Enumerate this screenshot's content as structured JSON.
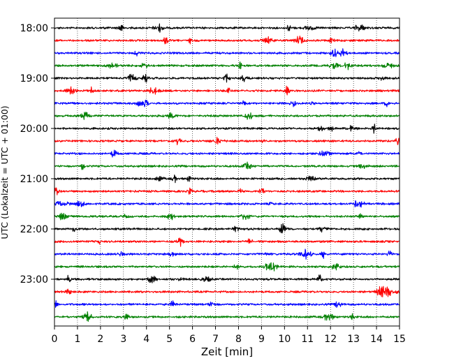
{
  "chart_data": {
    "type": "line",
    "title": "",
    "xlabel": "Zeit  [min]",
    "ylabel": "UTC (Lokalzeit = UTC + 01:00)",
    "xlim": [
      0,
      15
    ],
    "x_ticks": [
      "0",
      "1",
      "2",
      "3",
      "4",
      "5",
      "6",
      "7",
      "8",
      "9",
      "10",
      "11",
      "12",
      "13",
      "14",
      "15"
    ],
    "y_ticks": [
      "18:00",
      "19:00",
      "20:00",
      "21:00",
      "22:00",
      "23:00"
    ],
    "grid": "vertical dotted",
    "trace_interval_minutes": 15,
    "traces_per_hour": 4,
    "trace_colors": [
      "#000000",
      "#ff0000",
      "#0000ff",
      "#008000"
    ],
    "traces": [
      {
        "start": "18:00",
        "color": "#000000"
      },
      {
        "start": "18:15",
        "color": "#ff0000"
      },
      {
        "start": "18:30",
        "color": "#0000ff"
      },
      {
        "start": "18:45",
        "color": "#008000"
      },
      {
        "start": "19:00",
        "color": "#000000"
      },
      {
        "start": "19:15",
        "color": "#ff0000"
      },
      {
        "start": "19:30",
        "color": "#0000ff"
      },
      {
        "start": "19:45",
        "color": "#008000"
      },
      {
        "start": "20:00",
        "color": "#000000"
      },
      {
        "start": "20:15",
        "color": "#ff0000"
      },
      {
        "start": "20:30",
        "color": "#0000ff"
      },
      {
        "start": "20:45",
        "color": "#008000"
      },
      {
        "start": "21:00",
        "color": "#000000"
      },
      {
        "start": "21:15",
        "color": "#ff0000"
      },
      {
        "start": "21:30",
        "color": "#0000ff"
      },
      {
        "start": "21:45",
        "color": "#008000"
      },
      {
        "start": "22:00",
        "color": "#000000"
      },
      {
        "start": "22:15",
        "color": "#ff0000"
      },
      {
        "start": "22:30",
        "color": "#0000ff"
      },
      {
        "start": "22:45",
        "color": "#008000"
      },
      {
        "start": "23:00",
        "color": "#000000"
      },
      {
        "start": "23:15",
        "color": "#ff0000"
      },
      {
        "start": "23:30",
        "color": "#0000ff"
      },
      {
        "start": "23:45",
        "color": "#008000"
      }
    ]
  }
}
